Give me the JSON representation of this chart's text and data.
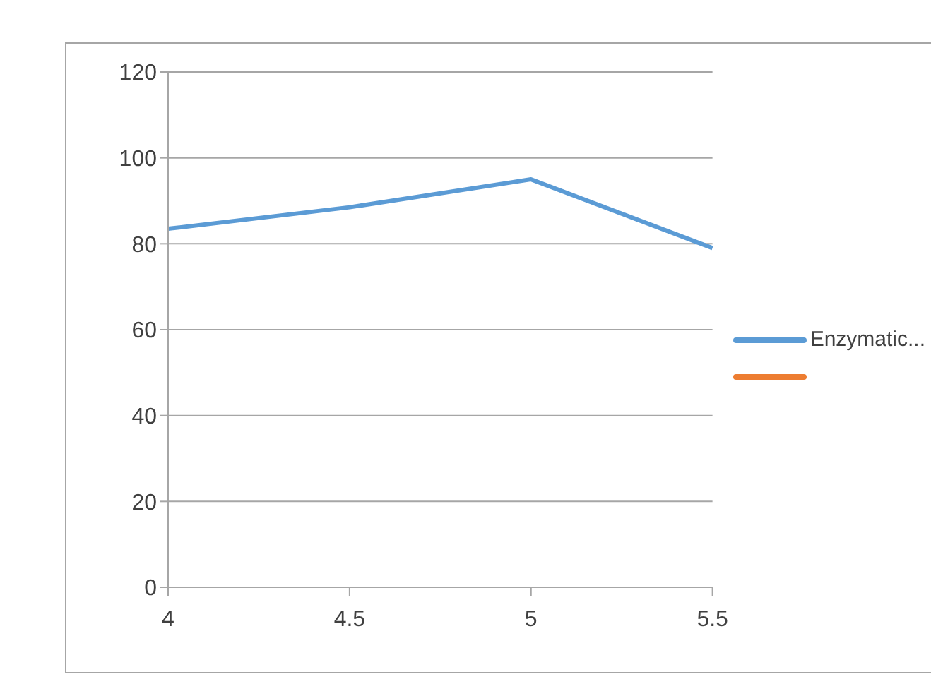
{
  "chart_data": {
    "type": "line",
    "categories": [
      "4",
      "4.5",
      "5",
      "5.5"
    ],
    "series": [
      {
        "name": "Enzymatic...",
        "color": "#5b9bd5",
        "values": [
          83.5,
          88.5,
          95,
          79
        ]
      },
      {
        "color": "#ed7d31",
        "values": [
          null,
          null,
          null,
          null
        ]
      }
    ],
    "ylim": [
      0,
      120
    ],
    "yticks": [
      0,
      20,
      40,
      60,
      80,
      100,
      120
    ],
    "grid": "y",
    "legend": "right",
    "marker": "none"
  }
}
